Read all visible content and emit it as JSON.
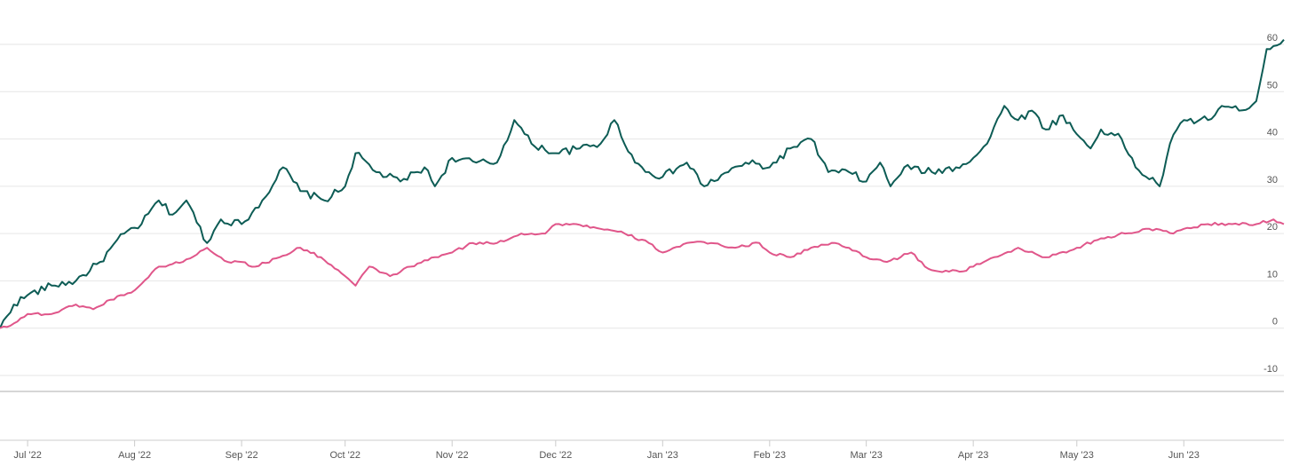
{
  "chart_data": {
    "type": "line",
    "title": "",
    "xlabel": "",
    "ylabel": "",
    "ylim": [
      -10,
      60
    ],
    "y_ticks": [
      -10,
      0,
      10,
      20,
      30,
      40,
      50,
      60
    ],
    "y_tick_labels": [
      "-10",
      "0",
      "10",
      "20",
      "30",
      "40",
      "50",
      "60"
    ],
    "y_axis_position": "right",
    "x_range": [
      "2022-06-23",
      "2023-06-30"
    ],
    "x_ticks": [
      {
        "date": "2022-07-01",
        "label": "Jul '22"
      },
      {
        "date": "2022-08-01",
        "label": "Aug '22"
      },
      {
        "date": "2022-09-01",
        "label": "Sep '22"
      },
      {
        "date": "2022-10-01",
        "label": "Oct '22"
      },
      {
        "date": "2022-11-01",
        "label": "Nov '22"
      },
      {
        "date": "2022-12-01",
        "label": "Dec '22"
      },
      {
        "date": "2023-01-01",
        "label": "Jan '23"
      },
      {
        "date": "2023-02-01",
        "label": "Feb '23"
      },
      {
        "date": "2023-03-01",
        "label": "Mar '23"
      },
      {
        "date": "2023-04-01",
        "label": "Apr '23"
      },
      {
        "date": "2023-05-01",
        "label": "May '23"
      },
      {
        "date": "2023-06-01",
        "label": "Jun '23"
      }
    ],
    "grid": true,
    "legend": "none",
    "series": [
      {
        "color": "#0d5c55",
        "points": [
          [
            "2022-06-23",
            0
          ],
          [
            "2022-06-27",
            5
          ],
          [
            "2022-07-01",
            7
          ],
          [
            "2022-07-08",
            9
          ],
          [
            "2022-07-15",
            10
          ],
          [
            "2022-07-22",
            14
          ],
          [
            "2022-07-29",
            20
          ],
          [
            "2022-08-03",
            22
          ],
          [
            "2022-08-08",
            27
          ],
          [
            "2022-08-12",
            24
          ],
          [
            "2022-08-16",
            27
          ],
          [
            "2022-08-22",
            18
          ],
          [
            "2022-08-26",
            23
          ],
          [
            "2022-09-01",
            22
          ],
          [
            "2022-09-07",
            27
          ],
          [
            "2022-09-13",
            34
          ],
          [
            "2022-09-18",
            29
          ],
          [
            "2022-09-25",
            27
          ],
          [
            "2022-10-01",
            30
          ],
          [
            "2022-10-04",
            37
          ],
          [
            "2022-10-10",
            33
          ],
          [
            "2022-10-17",
            31
          ],
          [
            "2022-10-24",
            34
          ],
          [
            "2022-10-27",
            30
          ],
          [
            "2022-11-01",
            36
          ],
          [
            "2022-11-08",
            35
          ],
          [
            "2022-11-14",
            35
          ],
          [
            "2022-11-19",
            44
          ],
          [
            "2022-11-24",
            39
          ],
          [
            "2022-12-01",
            37
          ],
          [
            "2022-12-08",
            38
          ],
          [
            "2022-12-14",
            39
          ],
          [
            "2022-12-18",
            44
          ],
          [
            "2022-12-24",
            35
          ],
          [
            "2022-12-28",
            33
          ],
          [
            "2023-01-01",
            32
          ],
          [
            "2023-01-08",
            35
          ],
          [
            "2023-01-13",
            30
          ],
          [
            "2023-01-20",
            33
          ],
          [
            "2023-01-25",
            35
          ],
          [
            "2023-02-01",
            34
          ],
          [
            "2023-02-07",
            38
          ],
          [
            "2023-02-13",
            40
          ],
          [
            "2023-02-18",
            33
          ],
          [
            "2023-02-24",
            33
          ],
          [
            "2023-03-01",
            31
          ],
          [
            "2023-03-05",
            35
          ],
          [
            "2023-03-08",
            30
          ],
          [
            "2023-03-12",
            34
          ],
          [
            "2023-03-20",
            33
          ],
          [
            "2023-03-27",
            34
          ],
          [
            "2023-04-01",
            36
          ],
          [
            "2023-04-05",
            39
          ],
          [
            "2023-04-10",
            47
          ],
          [
            "2023-04-14",
            44
          ],
          [
            "2023-04-18",
            46
          ],
          [
            "2023-04-22",
            42
          ],
          [
            "2023-04-27",
            45
          ],
          [
            "2023-05-01",
            41
          ],
          [
            "2023-05-05",
            38
          ],
          [
            "2023-05-08",
            42
          ],
          [
            "2023-05-14",
            40
          ],
          [
            "2023-05-18",
            34
          ],
          [
            "2023-05-25",
            30
          ],
          [
            "2023-05-28",
            39
          ],
          [
            "2023-06-01",
            44
          ],
          [
            "2023-06-08",
            44
          ],
          [
            "2023-06-12",
            47
          ],
          [
            "2023-06-17",
            46
          ],
          [
            "2023-06-22",
            48
          ],
          [
            "2023-06-25",
            59
          ],
          [
            "2023-06-30",
            61
          ]
        ]
      },
      {
        "color": "#e0568a",
        "points": [
          [
            "2022-06-23",
            0
          ],
          [
            "2022-06-27",
            1
          ],
          [
            "2022-07-01",
            3
          ],
          [
            "2022-07-08",
            3
          ],
          [
            "2022-07-15",
            5
          ],
          [
            "2022-07-20",
            4
          ],
          [
            "2022-07-25",
            6
          ],
          [
            "2022-08-01",
            8
          ],
          [
            "2022-08-08",
            13
          ],
          [
            "2022-08-15",
            14
          ],
          [
            "2022-08-22",
            17
          ],
          [
            "2022-08-28",
            14
          ],
          [
            "2022-09-01",
            14
          ],
          [
            "2022-09-05",
            13
          ],
          [
            "2022-09-12",
            15
          ],
          [
            "2022-09-18",
            17
          ],
          [
            "2022-09-24",
            15
          ],
          [
            "2022-10-01",
            11
          ],
          [
            "2022-10-04",
            9
          ],
          [
            "2022-10-08",
            13
          ],
          [
            "2022-10-14",
            11
          ],
          [
            "2022-10-20",
            13
          ],
          [
            "2022-10-27",
            15
          ],
          [
            "2022-11-01",
            16
          ],
          [
            "2022-11-07",
            18
          ],
          [
            "2022-11-14",
            18
          ],
          [
            "2022-11-21",
            20
          ],
          [
            "2022-11-28",
            20
          ],
          [
            "2022-12-01",
            22
          ],
          [
            "2022-12-07",
            22
          ],
          [
            "2022-12-14",
            21
          ],
          [
            "2022-12-21",
            20
          ],
          [
            "2022-12-28",
            18
          ],
          [
            "2023-01-01",
            16
          ],
          [
            "2023-01-08",
            18
          ],
          [
            "2023-01-15",
            18
          ],
          [
            "2023-01-22",
            17
          ],
          [
            "2023-01-29",
            18
          ],
          [
            "2023-02-01",
            16
          ],
          [
            "2023-02-07",
            15
          ],
          [
            "2023-02-13",
            17
          ],
          [
            "2023-02-20",
            18
          ],
          [
            "2023-02-27",
            16
          ],
          [
            "2023-03-01",
            15
          ],
          [
            "2023-03-07",
            14
          ],
          [
            "2023-03-14",
            16
          ],
          [
            "2023-03-18",
            13
          ],
          [
            "2023-03-22",
            12
          ],
          [
            "2023-03-29",
            12
          ],
          [
            "2023-04-01",
            13
          ],
          [
            "2023-04-07",
            15
          ],
          [
            "2023-04-14",
            17
          ],
          [
            "2023-04-21",
            15
          ],
          [
            "2023-04-28",
            16
          ],
          [
            "2023-05-01",
            17
          ],
          [
            "2023-05-08",
            19
          ],
          [
            "2023-05-15",
            20
          ],
          [
            "2023-05-22",
            21
          ],
          [
            "2023-05-29",
            20
          ],
          [
            "2023-06-01",
            21
          ],
          [
            "2023-06-08",
            22
          ],
          [
            "2023-06-15",
            22
          ],
          [
            "2023-06-22",
            22
          ],
          [
            "2023-06-27",
            23
          ],
          [
            "2023-06-30",
            22
          ]
        ]
      }
    ]
  }
}
